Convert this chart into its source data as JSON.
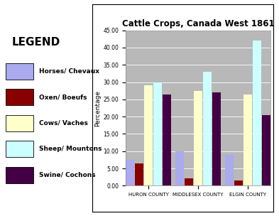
{
  "title": "Cattle Crops, Canada West 1861",
  "ylabel": "Percentage",
  "categories": [
    "HURON COUNTY",
    "MIDDLESEX COUNTY",
    "ELGIN COUNTY"
  ],
  "series": [
    {
      "label": "Horses/ Chevaux",
      "color": "#aaaaee",
      "values": [
        7.5,
        10.0,
        9.0
      ]
    },
    {
      "label": "Oxen/ Boeufs",
      "color": "#880000",
      "values": [
        6.5,
        2.2,
        1.5
      ]
    },
    {
      "label": "Cows/ Vaches",
      "color": "#ffffcc",
      "values": [
        29.0,
        27.5,
        26.5
      ]
    },
    {
      "label": "Sheep/ Mountons",
      "color": "#ccffff",
      "values": [
        30.0,
        33.0,
        42.0
      ]
    },
    {
      "label": "Swine/ Cochons",
      "color": "#440044",
      "values": [
        26.5,
        27.0,
        20.5
      ]
    }
  ],
  "ylim": [
    0,
    45
  ],
  "yticks": [
    0.0,
    5.0,
    10.0,
    15.0,
    20.0,
    25.0,
    30.0,
    35.0,
    40.0,
    45.0
  ],
  "legend_title": "LEGEND",
  "bar_width": 0.14,
  "plot_bg_color": "#b8b8b8",
  "outer_bg": "#ffffff",
  "chart_panel_bg": "#ffffff",
  "legend_colors": [
    "#aaaaee",
    "#880000",
    "#ffffcc",
    "#ccffff",
    "#440044"
  ],
  "legend_labels": [
    "Horses/ Chevaux",
    "Oxen/ Boeufs",
    "Cows/ Vaches",
    "Sheep/ Mountons",
    "Swine/ Cochons"
  ]
}
